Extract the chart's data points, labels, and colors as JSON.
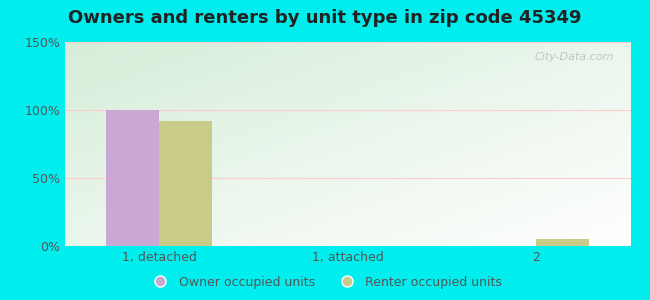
{
  "title": "Owners and renters by unit type in zip code 45349",
  "categories": [
    "1, detached",
    "1, attached",
    "2"
  ],
  "owner_values": [
    100,
    0,
    0
  ],
  "renter_values": [
    92,
    0,
    5
  ],
  "owner_color": "#c9a8d4",
  "renter_color": "#c8cc88",
  "ylim": [
    0,
    150
  ],
  "yticks": [
    0,
    50,
    100,
    150
  ],
  "ytick_labels": [
    "0%",
    "50%",
    "100%",
    "150%"
  ],
  "bar_width": 0.28,
  "legend_labels": [
    "Owner occupied units",
    "Renter occupied units"
  ],
  "figure_bg": "#00eeee",
  "watermark": "City-Data.com",
  "title_fontsize": 13,
  "tick_fontsize": 9,
  "legend_fontsize": 9,
  "grid_color": "#ffcccc",
  "bg_gradient_top": "#d8eedc",
  "bg_gradient_bottom": "#f0faf0"
}
